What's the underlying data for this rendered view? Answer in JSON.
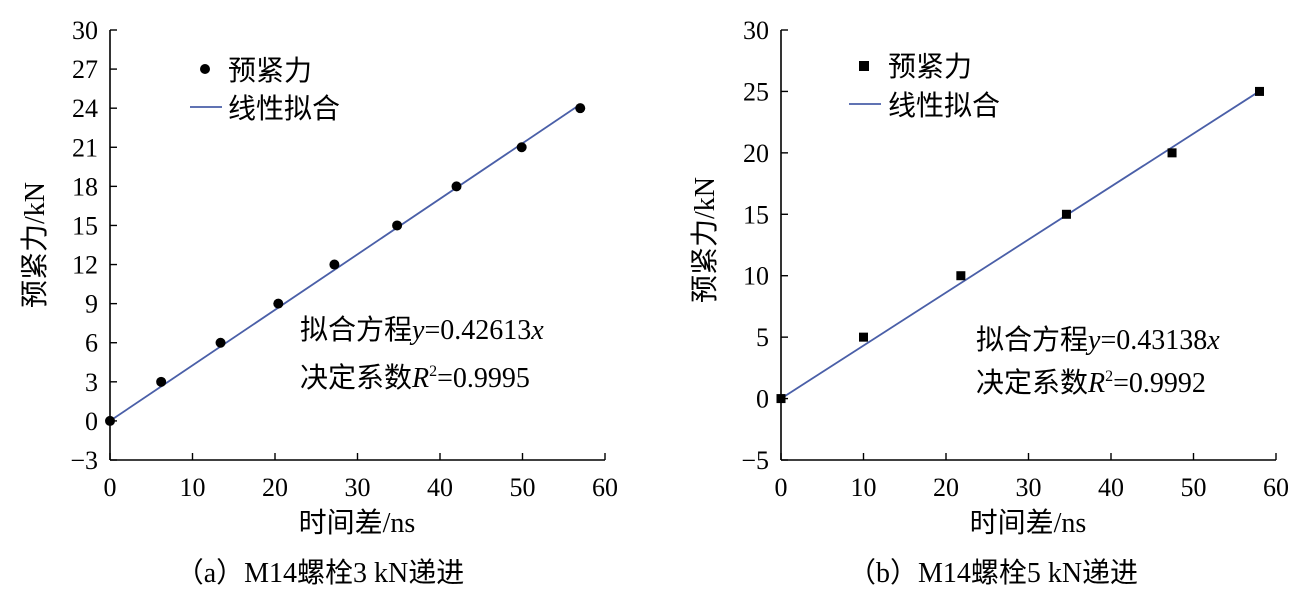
{
  "chart_data": [
    {
      "type": "scatter",
      "panel": "a",
      "caption": "（a）M14螺栓3 kN递进",
      "xlabel": "时间差/ns",
      "ylabel": "预紧力/kN",
      "xlim": [
        0,
        60
      ],
      "ylim": [
        -3,
        30
      ],
      "xticks": [
        "0",
        "10",
        "20",
        "30",
        "40",
        "50",
        "60"
      ],
      "yticks": [
        "−3",
        "0",
        "3",
        "6",
        "9",
        "12",
        "15",
        "18",
        "21",
        "24",
        "27",
        "30"
      ],
      "legend": {
        "points": "预紧力",
        "fit": "线性拟合"
      },
      "marker": "circle",
      "series": [
        {
          "name": "预紧力",
          "x": [
            0,
            6.2,
            13.4,
            20.4,
            27.2,
            34.8,
            42.0,
            49.9,
            57.0
          ],
          "y": [
            0,
            3,
            6,
            9,
            12,
            15,
            18,
            21,
            24
          ]
        }
      ],
      "fit": {
        "slope": 0.42613,
        "x_end": 57.0
      },
      "equation": {
        "prefix": "拟合方程",
        "var_y": "y",
        "eq": "=0.42613",
        "var_x": "x"
      },
      "r2": {
        "prefix": "决定系数",
        "var": "R",
        "sup": "2",
        "eq": "=0.9995"
      }
    },
    {
      "type": "scatter",
      "panel": "b",
      "caption": "（b）M14螺栓5 kN递进",
      "xlabel": "时间差/ns",
      "ylabel": "预紧力/kN",
      "xlim": [
        0,
        60
      ],
      "ylim": [
        -5,
        30
      ],
      "xticks": [
        "0",
        "10",
        "20",
        "30",
        "40",
        "50",
        "60"
      ],
      "yticks": [
        "−5",
        "0",
        "5",
        "10",
        "15",
        "20",
        "25",
        "30"
      ],
      "legend": {
        "points": "预紧力",
        "fit": "线性拟合"
      },
      "marker": "square",
      "series": [
        {
          "name": "预紧力",
          "x": [
            0,
            10.0,
            21.8,
            34.6,
            47.4,
            58.0
          ],
          "y": [
            0,
            5,
            10,
            15,
            20,
            25
          ]
        }
      ],
      "fit": {
        "slope": 0.43138,
        "x_end": 58.0
      },
      "equation": {
        "prefix": "拟合方程",
        "var_y": "y",
        "eq": "=0.43138",
        "var_x": "x"
      },
      "r2": {
        "prefix": "决定系数",
        "var": "R",
        "sup": "2",
        "eq": "=0.9992"
      }
    }
  ]
}
